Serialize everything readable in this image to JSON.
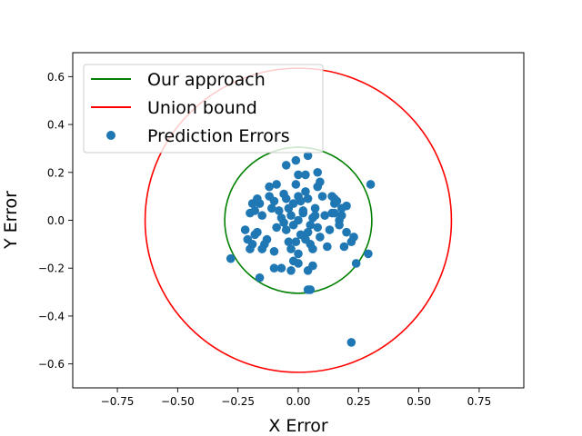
{
  "chart_data": {
    "type": "scatter",
    "title": "",
    "xlabel": "X Error",
    "ylabel": "Y Error",
    "xlim": [
      -0.935,
      0.935
    ],
    "ylim": [
      -0.7,
      0.7
    ],
    "xticks": [
      -0.75,
      -0.5,
      -0.25,
      0.0,
      0.25,
      0.5,
      0.75
    ],
    "xtick_labels": [
      "−0.75",
      "−0.50",
      "−0.25",
      "0.00",
      "0.25",
      "0.50",
      "0.75"
    ],
    "yticks": [
      -0.6,
      -0.4,
      -0.2,
      0.0,
      0.2,
      0.4,
      0.6
    ],
    "ytick_labels": [
      "−0.6",
      "−0.4",
      "−0.2",
      "0.0",
      "0.2",
      "0.4",
      "0.6"
    ],
    "grid": false,
    "legend_position": "top-left",
    "series": [
      {
        "name": "Our approach",
        "kind": "circle",
        "center": [
          0,
          0
        ],
        "radius": 0.305,
        "color": "#008000"
      },
      {
        "name": "Union bound",
        "kind": "circle",
        "center": [
          0,
          0
        ],
        "radius": 0.635,
        "color": "#ff0000"
      },
      {
        "name": "Prediction Errors",
        "kind": "scatter",
        "color": "#1f77b4",
        "points": [
          [
            0.0,
            0.0
          ],
          [
            0.02,
            0.03
          ],
          [
            -0.03,
            0.02
          ],
          [
            0.05,
            -0.02
          ],
          [
            -0.05,
            -0.04
          ],
          [
            0.01,
            -0.06
          ],
          [
            -0.02,
            0.07
          ],
          [
            0.07,
            0.05
          ],
          [
            -0.07,
            0.01
          ],
          [
            0.04,
            0.09
          ],
          [
            -0.09,
            -0.03
          ],
          [
            0.09,
            -0.07
          ],
          [
            -0.04,
            -0.09
          ],
          [
            0.11,
            0.02
          ],
          [
            -0.11,
            0.05
          ],
          [
            0.03,
            0.12
          ],
          [
            -0.06,
            0.11
          ],
          [
            0.13,
            -0.04
          ],
          [
            -0.13,
            -0.08
          ],
          [
            0.06,
            -0.12
          ],
          [
            -0.01,
            0.15
          ],
          [
            0.15,
            0.07
          ],
          [
            -0.15,
            0.02
          ],
          [
            0.08,
            0.14
          ],
          [
            0.0,
            -0.14
          ],
          [
            -0.1,
            -0.13
          ],
          [
            0.12,
            -0.11
          ],
          [
            -0.12,
            0.1
          ],
          [
            0.17,
            0.0
          ],
          [
            -0.17,
            -0.05
          ],
          [
            0.02,
            0.04
          ],
          [
            -0.02,
            -0.02
          ],
          [
            0.04,
            -0.05
          ],
          [
            -0.04,
            0.05
          ],
          [
            0.06,
            0.01
          ],
          [
            -0.06,
            -0.01
          ],
          [
            0.01,
            0.08
          ],
          [
            -0.01,
            -0.09
          ],
          [
            0.08,
            -0.03
          ],
          [
            -0.08,
            0.04
          ],
          [
            0.1,
            0.1
          ],
          [
            -0.1,
            0.08
          ],
          [
            0.05,
            -0.1
          ],
          [
            -0.03,
            -0.12
          ],
          [
            0.14,
            0.03
          ],
          [
            -0.14,
            -0.1
          ],
          [
            0.07,
            0.02
          ],
          [
            -0.05,
            0.09
          ],
          [
            0.0,
            0.1
          ],
          [
            0.03,
            -0.08
          ],
          [
            -0.16,
            0.07
          ],
          [
            -0.18,
            -0.06
          ],
          [
            -0.19,
            -0.1
          ],
          [
            -0.2,
            0.03
          ],
          [
            -0.22,
            -0.04
          ],
          [
            -0.2,
            -0.12
          ],
          [
            -0.17,
            0.09
          ],
          [
            -0.15,
            -0.12
          ],
          [
            -0.16,
            -0.24
          ],
          [
            -0.28,
            -0.16
          ],
          [
            -0.21,
            -0.08
          ],
          [
            -0.19,
            0.07
          ],
          [
            -0.18,
            0.04
          ],
          [
            0.16,
            0.08
          ],
          [
            0.18,
            0.05
          ],
          [
            0.2,
            -0.05
          ],
          [
            0.22,
            -0.09
          ],
          [
            0.23,
            -0.07
          ],
          [
            0.19,
            -0.11
          ],
          [
            0.2,
            0.06
          ],
          [
            0.15,
            0.03
          ],
          [
            0.17,
            -0.02
          ],
          [
            0.18,
            0.02
          ],
          [
            0.3,
            0.15
          ],
          [
            0.29,
            -0.14
          ],
          [
            0.24,
            -0.18
          ],
          [
            0.22,
            -0.51
          ],
          [
            0.05,
            -0.29
          ],
          [
            0.04,
            -0.29
          ],
          [
            0.0,
            -0.18
          ],
          [
            -0.03,
            -0.21
          ],
          [
            -0.07,
            -0.2
          ],
          [
            -0.1,
            -0.2
          ],
          [
            0.04,
            -0.21
          ],
          [
            0.06,
            -0.19
          ],
          [
            -0.02,
            -0.17
          ],
          [
            0.04,
            0.27
          ],
          [
            -0.01,
            0.25
          ],
          [
            -0.05,
            0.23
          ],
          [
            0.08,
            0.2
          ],
          [
            0.0,
            0.19
          ],
          [
            0.03,
            0.19
          ],
          [
            0.09,
            0.16
          ],
          [
            -0.09,
            0.15
          ],
          [
            -0.12,
            0.14
          ],
          [
            0.14,
            0.1
          ],
          [
            0.15,
            0.09
          ]
        ]
      }
    ]
  }
}
